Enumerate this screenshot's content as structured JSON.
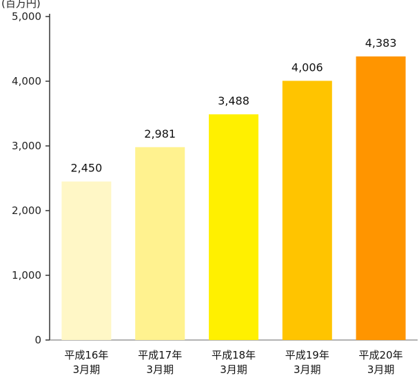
{
  "chart_data": {
    "type": "bar",
    "title": "",
    "unit_label": "(百万円)",
    "xlabel": "",
    "ylabel": "",
    "categories": [
      [
        "平成16年",
        "3月期"
      ],
      [
        "平成17年",
        "3月期"
      ],
      [
        "平成18年",
        "3月期"
      ],
      [
        "平成19年",
        "3月期"
      ],
      [
        "平成20年",
        "3月期"
      ]
    ],
    "values": [
      2450,
      2981,
      3488,
      4006,
      4383
    ],
    "value_labels": [
      "2,450",
      "2,981",
      "3,488",
      "4,006",
      "4,383"
    ],
    "colors": [
      "#fff7c6",
      "#fff28f",
      "#fff000",
      "#ffc400",
      "#ff9500"
    ],
    "ylim": [
      0,
      5000
    ],
    "yticks": [
      0,
      1000,
      2000,
      3000,
      4000,
      5000
    ],
    "ytick_labels": [
      "0",
      "1,000",
      "2,000",
      "3,000",
      "4,000",
      "5,000"
    ],
    "grid": false,
    "legend": "none"
  }
}
